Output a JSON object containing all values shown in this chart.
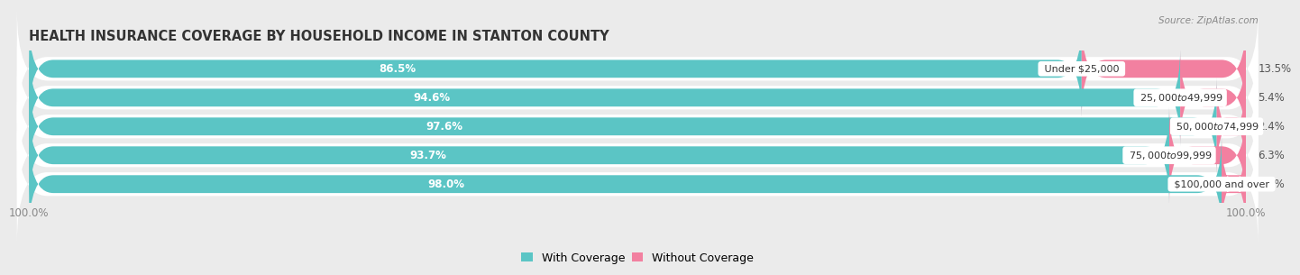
{
  "title": "HEALTH INSURANCE COVERAGE BY HOUSEHOLD INCOME IN STANTON COUNTY",
  "source": "Source: ZipAtlas.com",
  "categories": [
    "Under $25,000",
    "$25,000 to $49,999",
    "$50,000 to $74,999",
    "$75,000 to $99,999",
    "$100,000 and over"
  ],
  "with_coverage": [
    86.5,
    94.6,
    97.6,
    93.7,
    98.0
  ],
  "without_coverage": [
    13.5,
    5.4,
    2.4,
    6.3,
    2.0
  ],
  "color_with": "#5BC5C5",
  "color_without": "#F280A0",
  "row_bg_color": "#ffffff",
  "bg_color": "#ebebeb",
  "title_fontsize": 10.5,
  "label_fontsize": 8.5,
  "tick_fontsize": 8.5,
  "legend_fontsize": 9,
  "bar_height": 0.62,
  "total_width": 100,
  "scale": 0.65
}
